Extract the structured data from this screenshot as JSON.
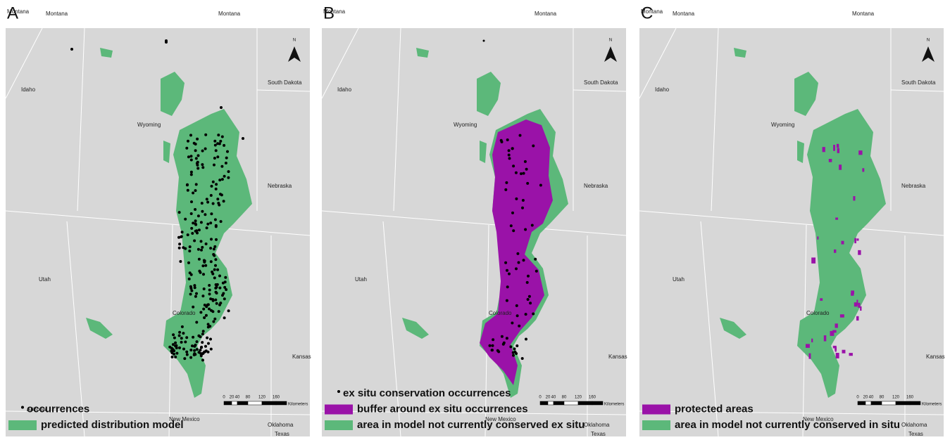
{
  "panels": [
    {
      "letter": "A",
      "north": "N",
      "states": [
        "Montana",
        "Montana",
        "Montana",
        "Idaho",
        "South Dakota",
        "Wyoming",
        "Nebraska",
        "Utah",
        "Colorado",
        "Kansas",
        "Arizona",
        "New Mexico",
        "Oklahoma",
        "Texas"
      ],
      "scale": {
        "ticks": [
          "0",
          "20",
          "40",
          "80",
          "120",
          "160"
        ],
        "unit": "Kilometers"
      },
      "legend": [
        {
          "label": "occurrences",
          "color": "#000000",
          "marker": "dot"
        },
        {
          "label": "predicted distribution model",
          "color": "#5cb87a",
          "marker": "square"
        }
      ]
    },
    {
      "letter": "B",
      "north": "N",
      "states": [
        "Montana",
        "Montana",
        "Idaho",
        "South Dakota",
        "Wyoming",
        "Nebraska",
        "Utah",
        "Colorado",
        "Kansas",
        "New Mexico",
        "Oklahoma",
        "Texas"
      ],
      "scale": {
        "ticks": [
          "0",
          "20",
          "40",
          "80",
          "120",
          "160"
        ],
        "unit": "Kilometers"
      },
      "legend": [
        {
          "label": "ex situ conservation occurrences",
          "color": "#000000",
          "marker": "dot"
        },
        {
          "label": "buffer around ex situ occurrences",
          "color": "#9a12a8",
          "marker": "square"
        },
        {
          "label": "area in model not currently conserved ex situ",
          "color": "#5cb87a",
          "marker": "square"
        }
      ]
    },
    {
      "letter": "C",
      "north": "N",
      "states": [
        "Montana",
        "Montana",
        "Montana",
        "Idaho",
        "South Dakota",
        "Wyoming",
        "Nebraska",
        "Utah",
        "Colorado",
        "Kansas",
        "New Mexico",
        "Oklahoma",
        "Texas"
      ],
      "scale": {
        "ticks": [
          "0",
          "20",
          "40",
          "80",
          "120",
          "160"
        ],
        "unit": "Kilometers"
      },
      "legend": [
        {
          "label": "protected areas",
          "color": "#9a12a8",
          "marker": "square"
        },
        {
          "label": "area in model not currently conserved in situ",
          "color": "#5cb87a",
          "marker": "square"
        }
      ]
    }
  ]
}
